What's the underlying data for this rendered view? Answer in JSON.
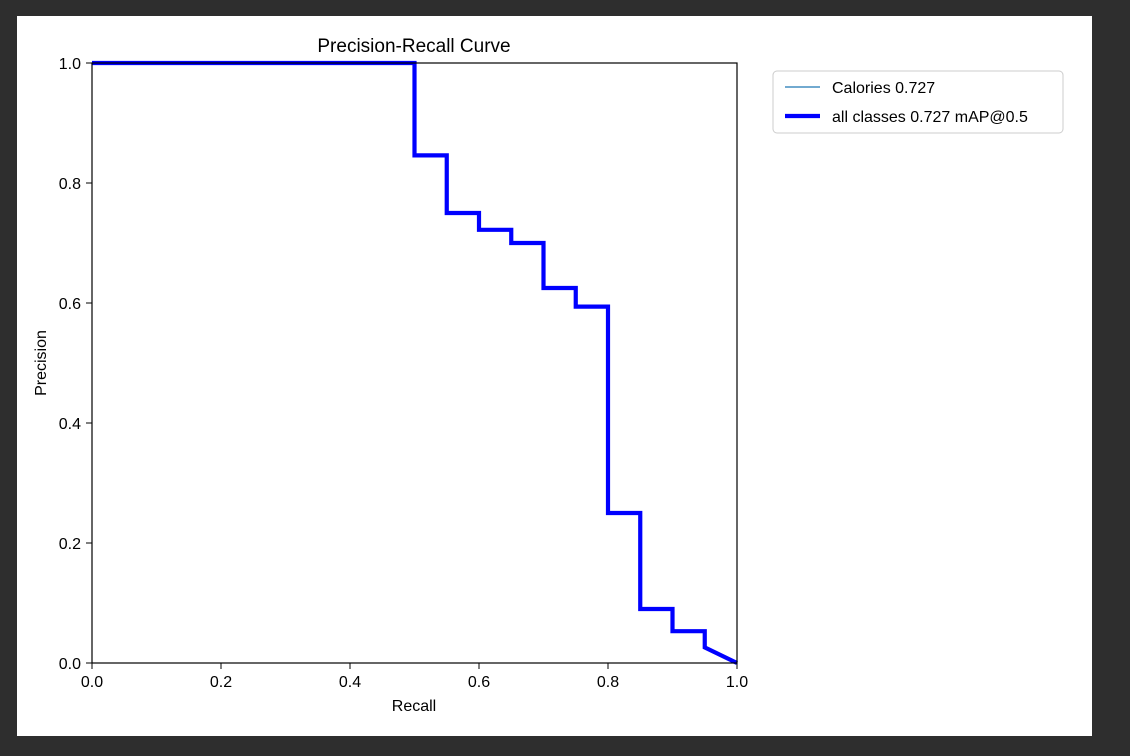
{
  "chart_data": {
    "type": "line",
    "title": "Precision-Recall Curve",
    "xlabel": "Recall",
    "ylabel": "Precision",
    "xlim": [
      0.0,
      1.0
    ],
    "ylim": [
      0.0,
      1.0
    ],
    "xticks": [
      "0.0",
      "0.2",
      "0.4",
      "0.6",
      "0.8",
      "1.0"
    ],
    "yticks": [
      "0.0",
      "0.2",
      "0.4",
      "0.6",
      "0.8",
      "1.0"
    ],
    "grid": false,
    "legend_placement": "outside-upper-right",
    "series": [
      {
        "name": "Calories 0.727",
        "color": "#1f77b4",
        "line_width": "thin",
        "x": [
          0.0,
          0.5,
          0.5,
          0.55,
          0.55,
          0.6,
          0.6,
          0.65,
          0.65,
          0.7,
          0.7,
          0.75,
          0.75,
          0.8,
          0.8,
          0.85,
          0.85,
          0.9,
          0.9,
          0.95,
          0.95,
          1.0
        ],
        "y": [
          1.0,
          1.0,
          0.846,
          0.846,
          0.75,
          0.75,
          0.722,
          0.722,
          0.7,
          0.7,
          0.625,
          0.625,
          0.594,
          0.594,
          0.25,
          0.25,
          0.09,
          0.09,
          0.053,
          0.053,
          0.026,
          0.0
        ]
      },
      {
        "name": "all classes 0.727 mAP@0.5",
        "color": "#0000ff",
        "line_width": "thick",
        "x": [
          0.0,
          0.5,
          0.5,
          0.55,
          0.55,
          0.6,
          0.6,
          0.65,
          0.65,
          0.7,
          0.7,
          0.75,
          0.75,
          0.8,
          0.8,
          0.85,
          0.85,
          0.9,
          0.9,
          0.95,
          0.95,
          1.0
        ],
        "y": [
          1.0,
          1.0,
          0.846,
          0.846,
          0.75,
          0.75,
          0.722,
          0.722,
          0.7,
          0.7,
          0.625,
          0.625,
          0.594,
          0.594,
          0.25,
          0.25,
          0.09,
          0.09,
          0.053,
          0.053,
          0.026,
          0.0
        ]
      }
    ]
  }
}
